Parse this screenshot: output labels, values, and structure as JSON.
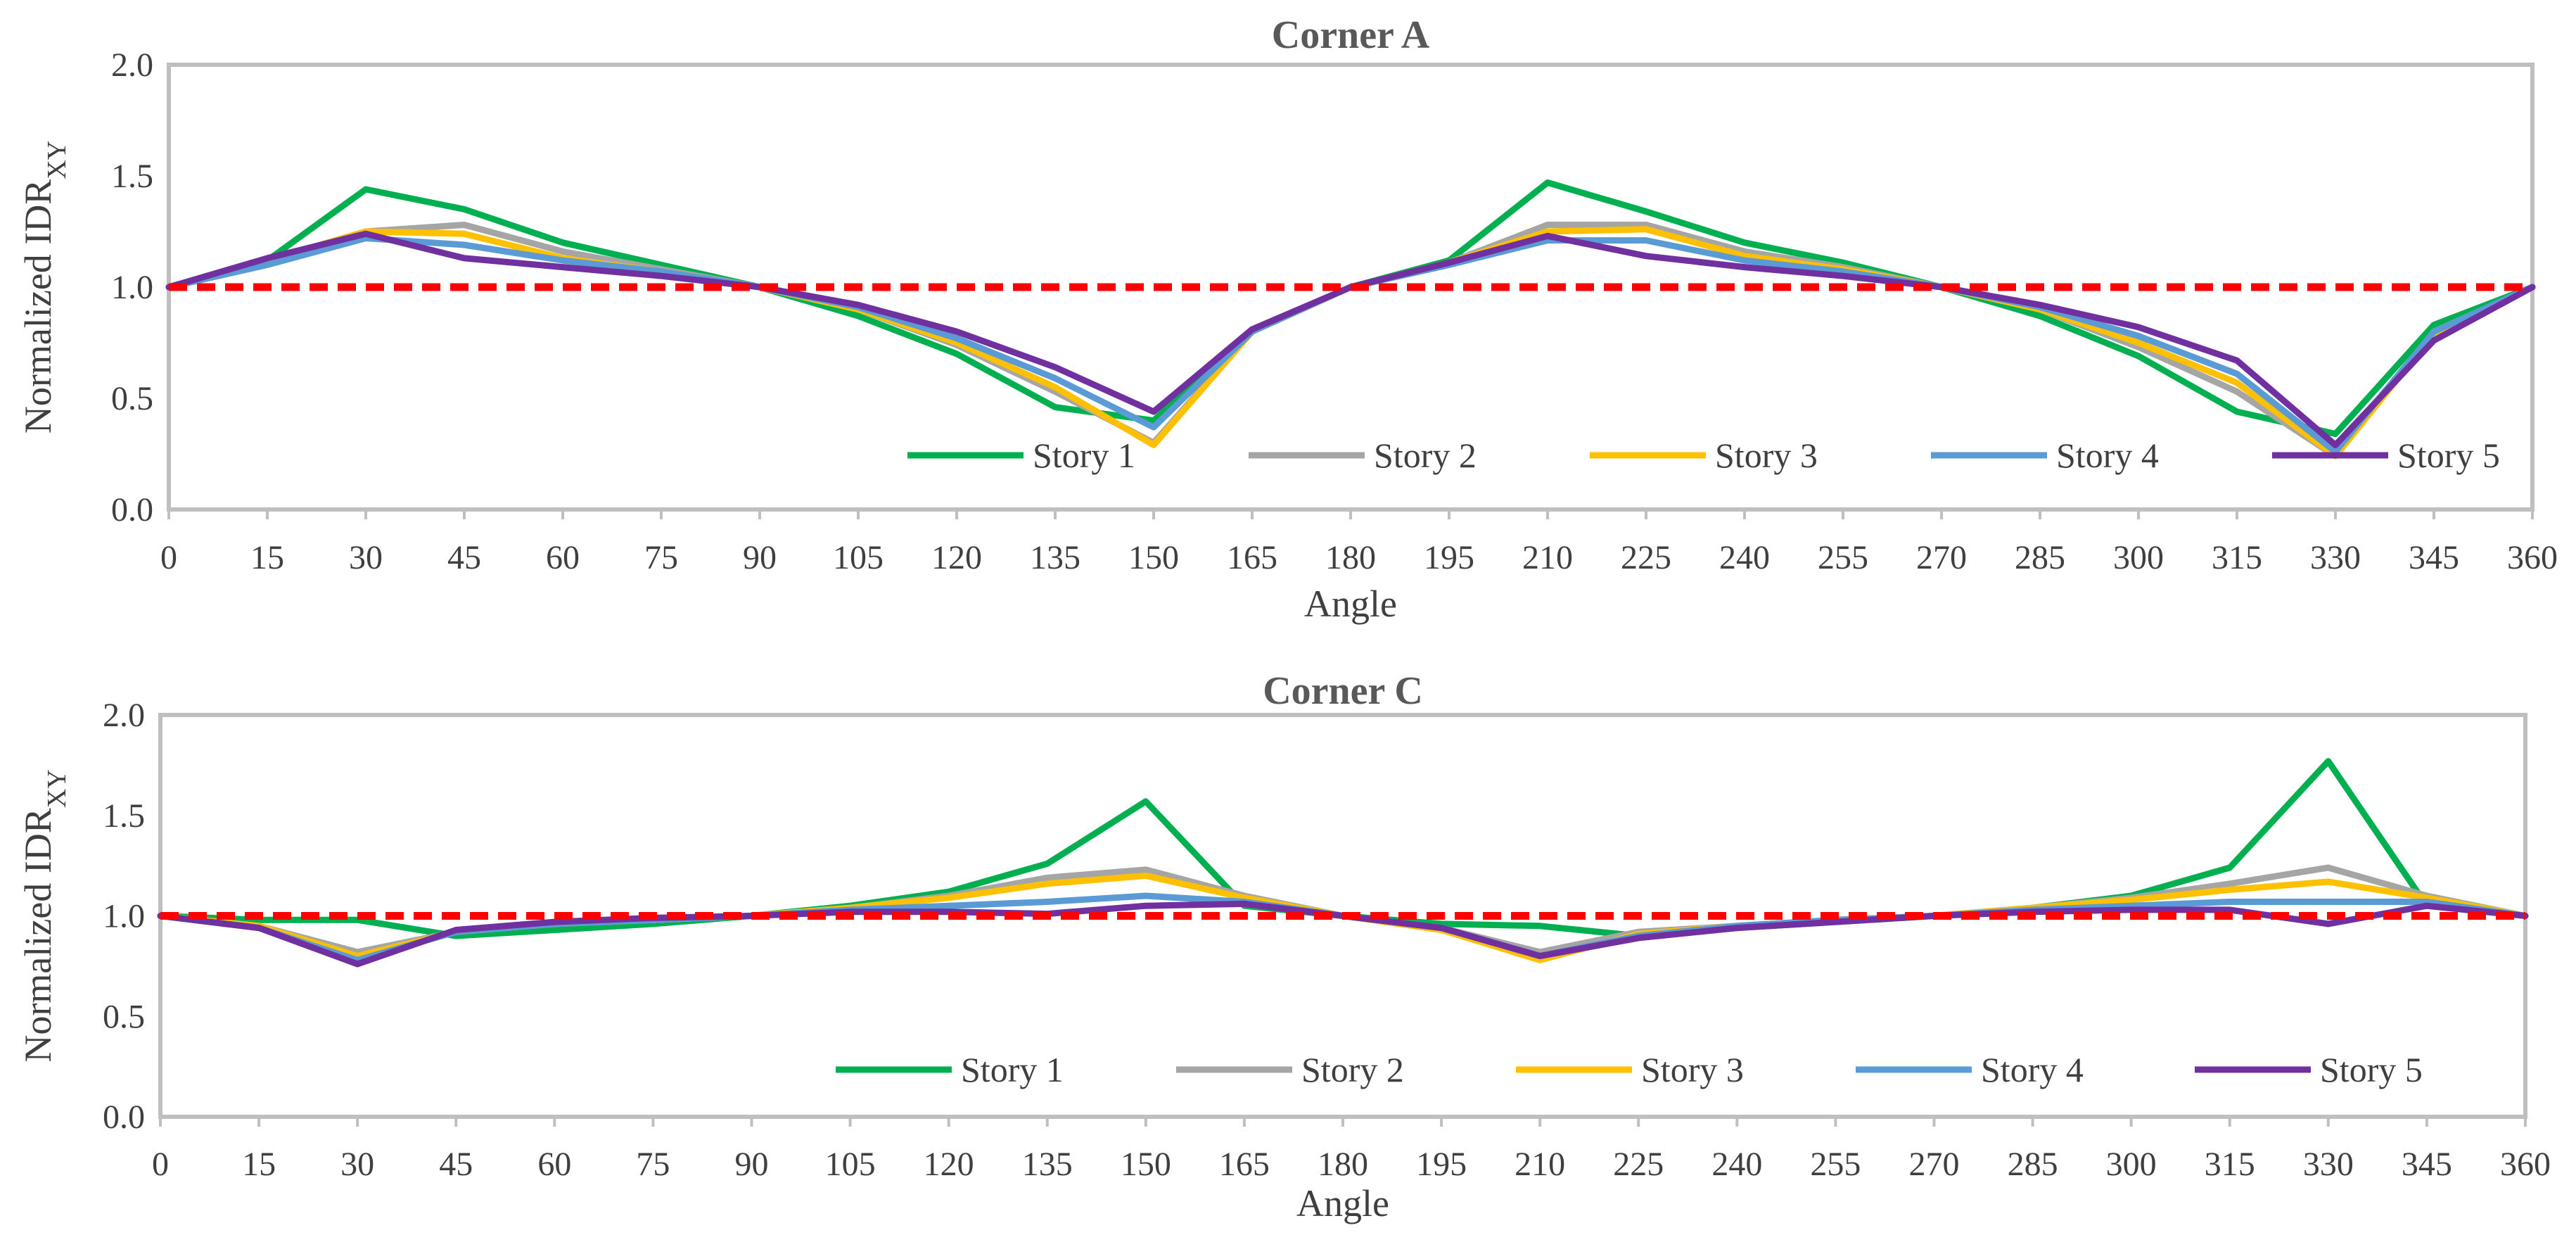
{
  "chart_data": [
    {
      "type": "line",
      "title": "Corner A",
      "xlabel": "Angle",
      "ylabel_main": "Normalized IDR",
      "ylabel_sub": "XY",
      "ylim": [
        0,
        2
      ],
      "yticks": [
        "0.0",
        "0.5",
        "1.0",
        "1.5",
        "2.0"
      ],
      "ytick_values": [
        0,
        0.5,
        1.0,
        1.5,
        2.0
      ],
      "categories": [
        "0",
        "15",
        "30",
        "45",
        "60",
        "75",
        "90",
        "105",
        "120",
        "135",
        "150",
        "165",
        "180",
        "195",
        "210",
        "225",
        "240",
        "255",
        "270",
        "285",
        "300",
        "315",
        "330",
        "345",
        "360"
      ],
      "reference_line": {
        "value": 1.0,
        "color": "#ff0000"
      },
      "legend_position": "inside-bottom",
      "series": [
        {
          "name": "Story 1",
          "color": "#00b050",
          "values": [
            1.0,
            1.12,
            1.44,
            1.35,
            1.2,
            1.1,
            1.0,
            0.87,
            0.7,
            0.46,
            0.4,
            0.8,
            1.0,
            1.12,
            1.47,
            1.34,
            1.2,
            1.11,
            1.0,
            0.87,
            0.69,
            0.44,
            0.34,
            0.83,
            1.0
          ]
        },
        {
          "name": "Story 2",
          "color": "#a5a5a5",
          "values": [
            1.0,
            1.12,
            1.25,
            1.28,
            1.16,
            1.08,
            1.0,
            0.9,
            0.74,
            0.53,
            0.3,
            0.8,
            1.0,
            1.11,
            1.28,
            1.28,
            1.16,
            1.09,
            1.0,
            0.9,
            0.73,
            0.53,
            0.24,
            0.8,
            1.0
          ]
        },
        {
          "name": "Story 3",
          "color": "#ffc000",
          "values": [
            1.0,
            1.12,
            1.25,
            1.24,
            1.13,
            1.07,
            1.0,
            0.9,
            0.75,
            0.55,
            0.29,
            0.8,
            1.0,
            1.11,
            1.25,
            1.26,
            1.14,
            1.08,
            1.0,
            0.9,
            0.75,
            0.57,
            0.24,
            0.79,
            1.0
          ]
        },
        {
          "name": "Story 4",
          "color": "#5b9bd5",
          "values": [
            1.0,
            1.1,
            1.22,
            1.19,
            1.12,
            1.07,
            1.0,
            0.91,
            0.77,
            0.59,
            0.37,
            0.8,
            1.0,
            1.1,
            1.21,
            1.21,
            1.12,
            1.07,
            1.0,
            0.91,
            0.78,
            0.61,
            0.26,
            0.8,
            1.0
          ]
        },
        {
          "name": "Story 5",
          "color": "#7030a0",
          "values": [
            1.0,
            1.13,
            1.24,
            1.13,
            1.09,
            1.05,
            1.0,
            0.92,
            0.8,
            0.64,
            0.44,
            0.81,
            1.0,
            1.11,
            1.23,
            1.14,
            1.09,
            1.05,
            1.0,
            0.92,
            0.82,
            0.67,
            0.29,
            0.76,
            1.0
          ]
        }
      ]
    },
    {
      "type": "line",
      "title": "Corner C",
      "xlabel": "Angle",
      "ylabel_main": "Normalized IDR",
      "ylabel_sub": "XY",
      "ylim": [
        0,
        2
      ],
      "yticks": [
        "0.0",
        "0.5",
        "1.0",
        "1.5",
        "2.0"
      ],
      "ytick_values": [
        0,
        0.5,
        1.0,
        1.5,
        2.0
      ],
      "categories": [
        "0",
        "15",
        "30",
        "45",
        "60",
        "75",
        "90",
        "105",
        "120",
        "135",
        "150",
        "165",
        "180",
        "195",
        "210",
        "225",
        "240",
        "255",
        "270",
        "285",
        "300",
        "315",
        "330",
        "345",
        "360"
      ],
      "reference_line": {
        "value": 1.0,
        "color": "#ff0000"
      },
      "legend_position": "inside-bottom",
      "series": [
        {
          "name": "Story 1",
          "color": "#00b050",
          "values": [
            1.0,
            0.98,
            0.98,
            0.9,
            0.93,
            0.96,
            1.0,
            1.05,
            1.12,
            1.26,
            1.57,
            1.05,
            1.0,
            0.96,
            0.95,
            0.9,
            0.94,
            0.97,
            1.0,
            1.04,
            1.1,
            1.24,
            1.77,
            1.05,
            1.0
          ]
        },
        {
          "name": "Story 2",
          "color": "#a5a5a5",
          "values": [
            1.0,
            0.95,
            0.82,
            0.92,
            0.96,
            0.98,
            1.0,
            1.04,
            1.1,
            1.19,
            1.23,
            1.1,
            1.0,
            0.94,
            0.82,
            0.92,
            0.95,
            0.98,
            1.0,
            1.04,
            1.09,
            1.16,
            1.24,
            1.1,
            1.0
          ]
        },
        {
          "name": "Story 3",
          "color": "#ffc000",
          "values": [
            1.0,
            0.95,
            0.8,
            0.92,
            0.96,
            0.98,
            1.0,
            1.04,
            1.09,
            1.16,
            1.2,
            1.09,
            1.0,
            0.93,
            0.78,
            0.91,
            0.95,
            0.98,
            1.0,
            1.04,
            1.08,
            1.13,
            1.17,
            1.09,
            1.0
          ]
        },
        {
          "name": "Story 4",
          "color": "#5b9bd5",
          "values": [
            1.0,
            0.94,
            0.78,
            0.92,
            0.96,
            0.98,
            1.0,
            1.03,
            1.05,
            1.07,
            1.1,
            1.07,
            1.0,
            0.94,
            0.8,
            0.9,
            0.95,
            0.98,
            1.0,
            1.03,
            1.05,
            1.07,
            1.07,
            1.07,
            1.0
          ]
        },
        {
          "name": "Story 5",
          "color": "#7030a0",
          "values": [
            1.0,
            0.94,
            0.76,
            0.93,
            0.97,
            0.99,
            1.0,
            1.02,
            1.02,
            1.01,
            1.05,
            1.06,
            1.0,
            0.94,
            0.8,
            0.89,
            0.94,
            0.97,
            1.0,
            1.02,
            1.03,
            1.03,
            0.96,
            1.05,
            1.0
          ]
        }
      ]
    }
  ]
}
